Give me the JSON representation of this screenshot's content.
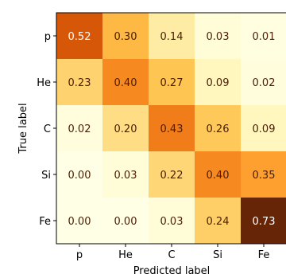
{
  "chart_data": {
    "type": "heatmap",
    "title": "",
    "xlabel": "Predicted label",
    "ylabel": "True label",
    "x_categories": [
      "p",
      "He",
      "C",
      "Si",
      "Fe"
    ],
    "y_categories": [
      "p",
      "He",
      "C",
      "Si",
      "Fe"
    ],
    "values": [
      [
        0.52,
        0.3,
        0.14,
        0.03,
        0.01
      ],
      [
        0.23,
        0.4,
        0.27,
        0.09,
        0.02
      ],
      [
        0.02,
        0.2,
        0.43,
        0.26,
        0.09
      ],
      [
        0.0,
        0.03,
        0.22,
        0.4,
        0.35
      ],
      [
        0.0,
        0.0,
        0.03,
        0.24,
        0.73
      ]
    ],
    "value_labels": [
      [
        "0.52",
        "0.30",
        "0.14",
        "0.03",
        "0.01"
      ],
      [
        "0.23",
        "0.40",
        "0.27",
        "0.09",
        "0.02"
      ],
      [
        "0.02",
        "0.20",
        "0.43",
        "0.26",
        "0.09"
      ],
      [
        "0.00",
        "0.03",
        "0.22",
        "0.40",
        "0.35"
      ],
      [
        "0.00",
        "0.00",
        "0.03",
        "0.24",
        "0.73"
      ]
    ],
    "colormap": "YlOrBr",
    "value_range": [
      0,
      0.73
    ],
    "grid": false,
    "legend": "none"
  }
}
